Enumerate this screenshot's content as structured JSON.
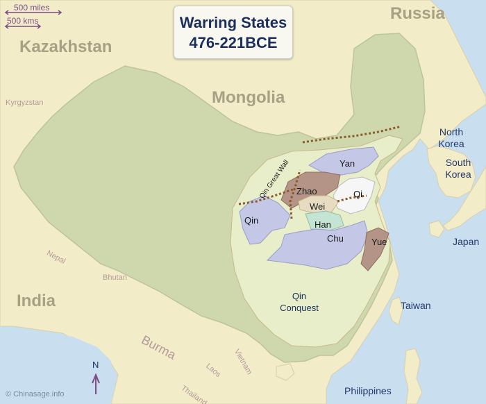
{
  "title": {
    "line1": "Warring States",
    "line2": "476-221BCE"
  },
  "scale": {
    "miles": "500 miles",
    "kms": "500 kms"
  },
  "countries": {
    "russia": "Russia",
    "kazakhstan": "Kazakhstan",
    "mongolia": "Mongolia",
    "kyrgyzstan": "Kyrgyzstan",
    "nepal": "Nepal",
    "bhutan": "Bhutan",
    "india": "India",
    "burma": "Burma",
    "laos": "Laos",
    "vietnam": "Vietnam",
    "thailand": "Thailand",
    "north_korea": "North Korea",
    "south_korea": "South Korea",
    "japan": "Japan",
    "taiwan": "Taiwan",
    "philippines": "Philippines"
  },
  "states": {
    "yan": "Yan",
    "zhao": "Zhao",
    "qi": "Qi",
    "wei": "Wei",
    "qin": "Qin",
    "han": "Han",
    "chu": "Chu",
    "yue": "Yue"
  },
  "wall_label": "Qin Great Wall",
  "conquest_label": {
    "line1": "Qin",
    "line2": "Conquest"
  },
  "compass": "N",
  "credit": "© Chinasage.info",
  "colors": {
    "sea": "#c9dff0",
    "land": "#f3ecc9",
    "china": "#cfd7ad",
    "conquest": "#e7eec9",
    "state_blue": "#c4c7e6",
    "state_brown": "#b39486",
    "state_beige": "#e7dcc1",
    "state_green": "#c4e4d4",
    "state_white": "#f6f6f6",
    "wall": "#8b5a2b"
  }
}
